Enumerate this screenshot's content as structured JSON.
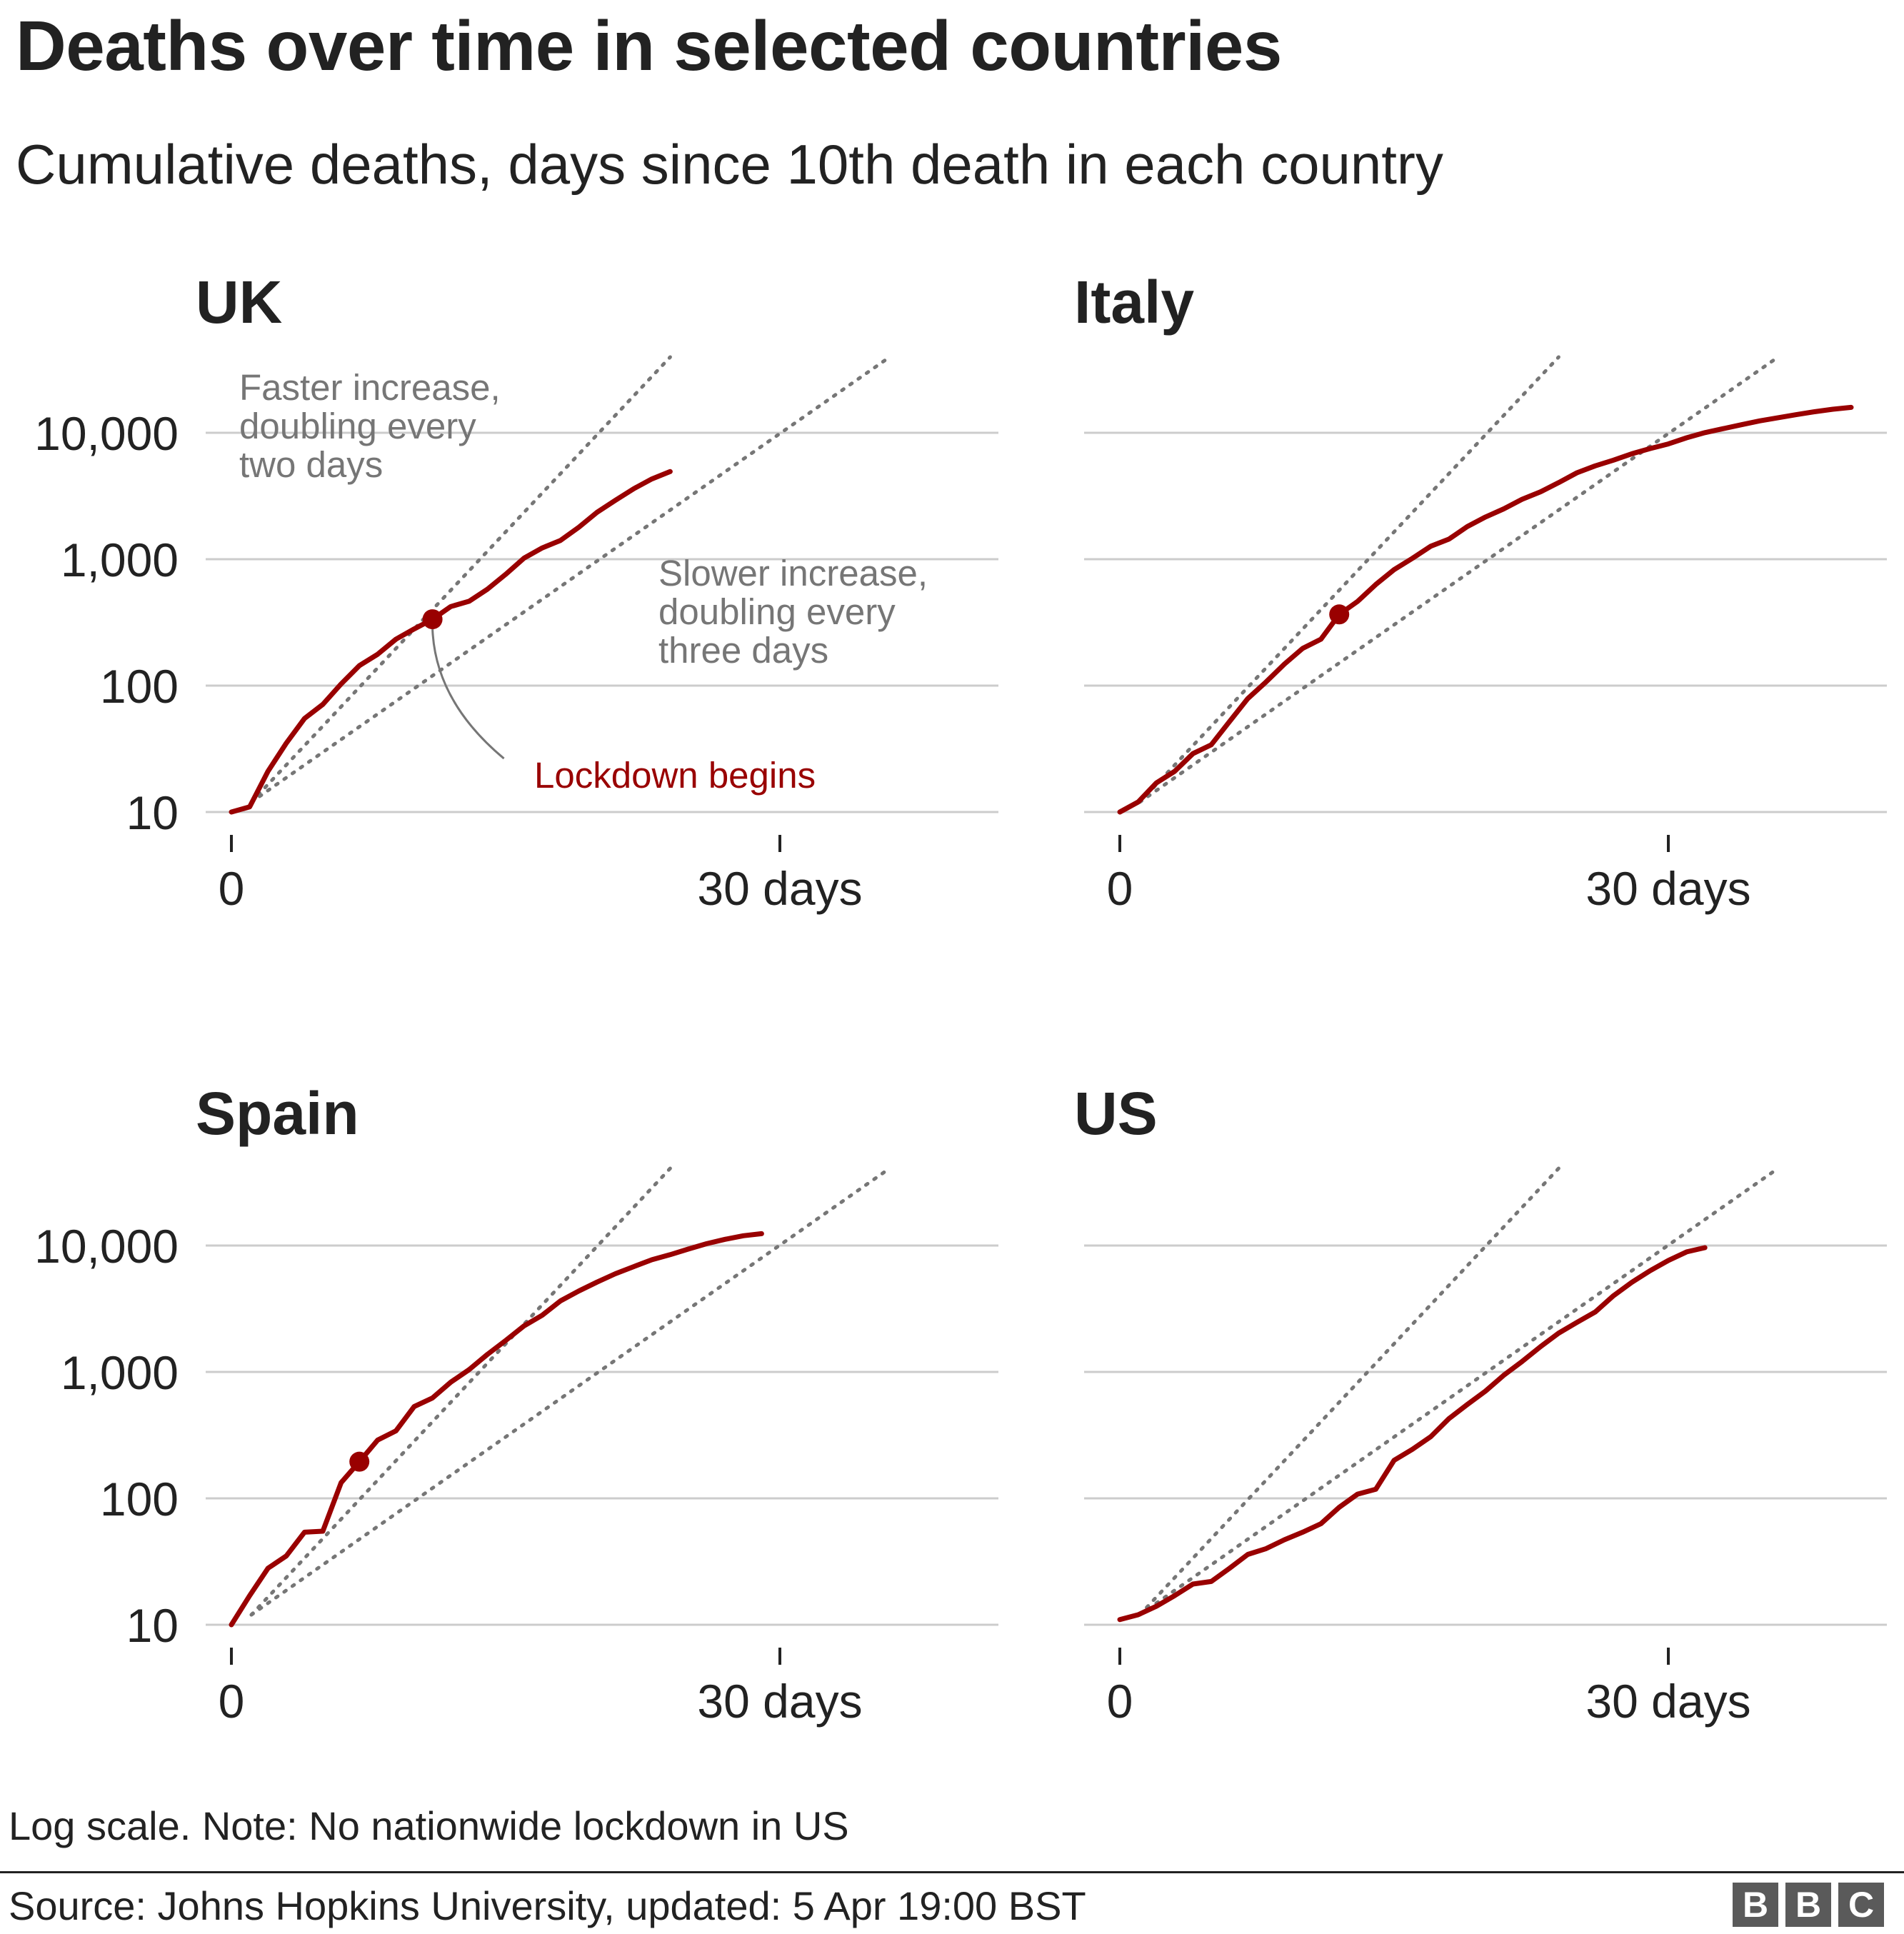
{
  "title": "Deaths over time in selected countries",
  "subtitle": "Cumulative deaths, days since 10th death in each country",
  "note": "Log scale. Note: No nationwide lockdown in US",
  "source": "Source: Johns Hopkins University, updated:  5 Apr 19:00 BST",
  "logo": [
    "B",
    "B",
    "C"
  ],
  "colors": {
    "series": "#990000",
    "grid": "#cccccc",
    "reference": "#767676",
    "text": "#222222"
  },
  "chart_data": [
    {
      "type": "line",
      "title": "UK",
      "scale": "log",
      "ylim": [
        10,
        40000
      ],
      "xlim": [
        0,
        42
      ],
      "yticks": [
        10,
        100,
        1000,
        10000
      ],
      "ytick_labels": [
        "10",
        "100",
        "1,000",
        "10,000"
      ],
      "xticks": [
        0,
        30
      ],
      "xtick_labels": [
        "0",
        "30 days"
      ],
      "grid": true,
      "series": [
        {
          "x": [
            0,
            1,
            2,
            3,
            4,
            5,
            6,
            7,
            8,
            9,
            10,
            11,
            12,
            13,
            14,
            15,
            16,
            17,
            18,
            19,
            20,
            21,
            22,
            23,
            24
          ],
          "y": [
            10,
            11,
            21,
            35,
            55,
            71,
            103,
            144,
            177,
            233,
            281,
            335,
            422,
            465,
            578,
            759,
            1019,
            1228,
            1408,
            1789,
            2352,
            2921,
            3605,
            4313,
            4934
          ]
        }
      ],
      "lockdown": {
        "x": 11,
        "y": 335,
        "label": "Lockdown begins"
      },
      "reference_lines": [
        {
          "doubling_days": 2,
          "label": "Faster increase, doubling every two days"
        },
        {
          "doubling_days": 3,
          "label": "Slower increase, doubling every three days"
        }
      ]
    },
    {
      "type": "line",
      "title": "Italy",
      "scale": "log",
      "ylim": [
        10,
        40000
      ],
      "xlim": [
        0,
        42
      ],
      "yticks": [
        10,
        100,
        1000,
        10000
      ],
      "ytick_labels": [
        "10",
        "100",
        "1,000",
        "10,000"
      ],
      "xticks": [
        0,
        30
      ],
      "xtick_labels": [
        "0",
        "30 days"
      ],
      "grid": true,
      "series": [
        {
          "x": [
            0,
            1,
            2,
            3,
            4,
            5,
            6,
            7,
            8,
            9,
            10,
            11,
            12,
            13,
            14,
            15,
            16,
            17,
            18,
            19,
            20,
            21,
            22,
            23,
            24,
            25,
            26,
            27,
            28,
            29,
            30,
            31,
            32,
            33,
            34,
            35,
            36,
            37,
            38,
            39,
            40
          ],
          "y": [
            10,
            12,
            17,
            21,
            29,
            34,
            52,
            79,
            107,
            148,
            197,
            233,
            366,
            463,
            631,
            827,
            1016,
            1266,
            1441,
            1809,
            2158,
            2503,
            2978,
            3405,
            4032,
            4825,
            5476,
            6077,
            6820,
            7503,
            8165,
            9134,
            10023,
            10779,
            11591,
            12428,
            13155,
            13915,
            14681,
            15362,
            15887
          ]
        }
      ],
      "lockdown": {
        "x": 12,
        "y": 366
      },
      "reference_lines": [
        {
          "doubling_days": 2
        },
        {
          "doubling_days": 3
        }
      ]
    },
    {
      "type": "line",
      "title": "Spain",
      "scale": "log",
      "ylim": [
        10,
        40000
      ],
      "xlim": [
        0,
        42
      ],
      "yticks": [
        10,
        100,
        1000,
        10000
      ],
      "ytick_labels": [
        "10",
        "100",
        "1,000",
        "10,000"
      ],
      "xticks": [
        0,
        30
      ],
      "xtick_labels": [
        "0",
        "30 days"
      ],
      "grid": true,
      "series": [
        {
          "x": [
            0,
            1,
            2,
            3,
            4,
            5,
            6,
            7,
            8,
            9,
            10,
            11,
            12,
            13,
            14,
            15,
            16,
            17,
            18,
            19,
            20,
            21,
            22,
            23,
            24,
            25,
            26,
            27,
            28,
            29
          ],
          "y": [
            10,
            17,
            28,
            35,
            54,
            55,
            133,
            195,
            289,
            342,
            533,
            623,
            830,
            1043,
            1375,
            1772,
            2311,
            2808,
            3647,
            4365,
            5138,
            5982,
            6803,
            7716,
            8464,
            9387,
            10348,
            11198,
            11947,
            12418
          ]
        }
      ],
      "lockdown": {
        "x": 7,
        "y": 195
      },
      "reference_lines": [
        {
          "doubling_days": 2
        },
        {
          "doubling_days": 3
        }
      ]
    },
    {
      "type": "line",
      "title": "US",
      "scale": "log",
      "ylim": [
        10,
        40000
      ],
      "xlim": [
        0,
        42
      ],
      "yticks": [
        10,
        100,
        1000,
        10000
      ],
      "ytick_labels": [
        "10",
        "100",
        "1,000",
        "10,000"
      ],
      "xticks": [
        0,
        30
      ],
      "xtick_labels": [
        "0",
        "30 days"
      ],
      "grid": true,
      "series": [
        {
          "x": [
            0,
            1,
            2,
            3,
            4,
            5,
            6,
            7,
            8,
            9,
            10,
            11,
            12,
            13,
            14,
            15,
            16,
            17,
            18,
            19,
            20,
            21,
            22,
            23,
            24,
            25,
            26,
            27,
            28,
            29,
            30,
            31,
            32
          ],
          "y": [
            11,
            12,
            14,
            17,
            21,
            22,
            28,
            36,
            40,
            47,
            54,
            63,
            85,
            108,
            118,
            200,
            244,
            307,
            427,
            552,
            706,
            942,
            1209,
            1581,
            2026,
            2467,
            2978,
            4005,
            5111,
            6318,
            7616,
            8901,
            9620
          ]
        }
      ],
      "reference_lines": [
        {
          "doubling_days": 2
        },
        {
          "doubling_days": 3
        }
      ]
    }
  ]
}
